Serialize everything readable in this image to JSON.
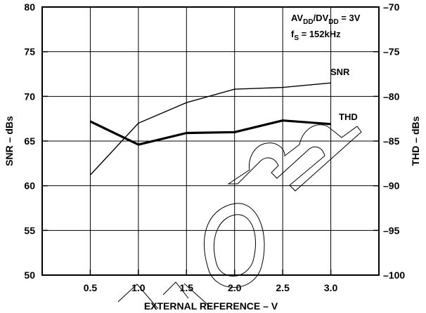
{
  "chart_data": {
    "type": "line",
    "title": "",
    "xlabel": "EXTERNAL REFERENCE – V",
    "ylabel_left": "SNR – dBs",
    "ylabel_right": "THD – dBs",
    "xlim": [
      0,
      3.5
    ],
    "ylim_left": [
      50,
      80
    ],
    "ylim_right": [
      -100,
      -70
    ],
    "x_ticks": [
      "0.5",
      "1.0",
      "1.5",
      "2.0",
      "2.5",
      "3.0"
    ],
    "x_tick_values": [
      0.5,
      1.0,
      1.5,
      2.0,
      2.5,
      3.0
    ],
    "y_ticks_left": [
      "50",
      "55",
      "60",
      "65",
      "70",
      "75",
      "80"
    ],
    "y_tick_left_values": [
      50,
      55,
      60,
      65,
      70,
      75,
      80
    ],
    "y_ticks_right": [
      "–100",
      "–95",
      "–90",
      "–85",
      "–80",
      "–75",
      "–70"
    ],
    "y_tick_right_values": [
      -100,
      -95,
      -90,
      -85,
      -80,
      -75,
      -70
    ],
    "grid": true,
    "annotations": {
      "line1": {
        "main": "AV",
        "sub1": "DD",
        "mid": "/DV",
        "sub2": "DD",
        "tail": " = 3V"
      },
      "line2": {
        "main": "f",
        "sub": "S",
        "tail": " = 152kHz"
      }
    },
    "series": [
      {
        "name": "SNR",
        "axis": "left",
        "x": [
          0.5,
          1.0,
          1.5,
          2.0,
          2.5,
          3.0
        ],
        "values": [
          61.2,
          67.0,
          69.3,
          70.8,
          71.0,
          71.5
        ],
        "line_width": "thin"
      },
      {
        "name": "THD",
        "axis": "right",
        "x": [
          0.5,
          1.0,
          1.5,
          2.0,
          2.5,
          3.0
        ],
        "values": [
          -82.8,
          -85.4,
          -84.1,
          -84.0,
          -82.7,
          -83.1
        ],
        "line_width": "thick"
      }
    ]
  }
}
